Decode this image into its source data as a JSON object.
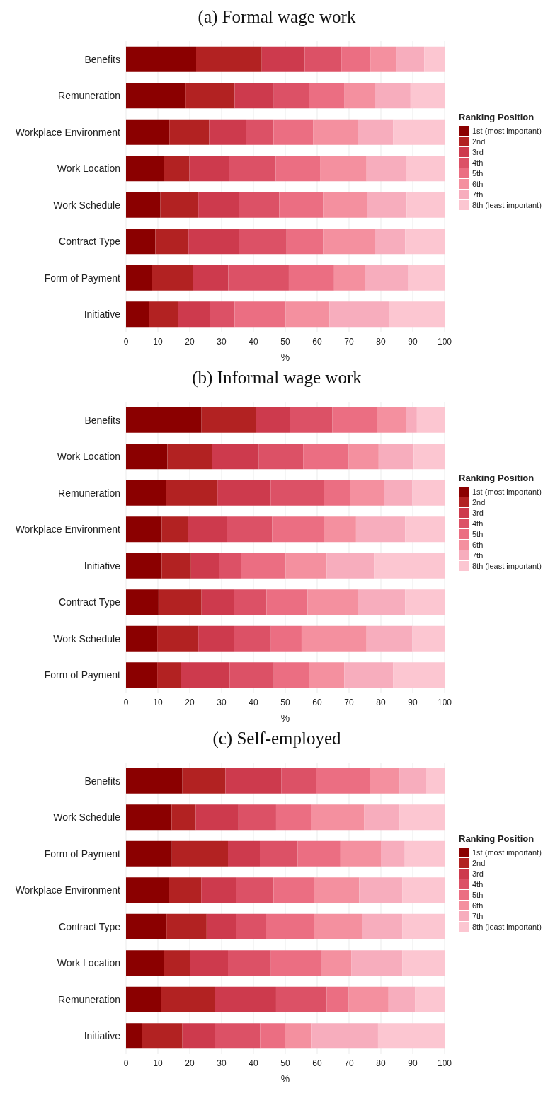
{
  "chart_data": [
    {
      "type": "bar",
      "orientation": "horizontal",
      "stacked": true,
      "title": "(a) Formal wage work",
      "xlabel": "%",
      "legend_title": "Ranking Position",
      "legend": "right",
      "grid": "x",
      "xlim": [
        0,
        100
      ],
      "xticks": [
        0,
        10,
        20,
        30,
        40,
        50,
        60,
        70,
        80,
        90,
        100
      ],
      "categories": [
        "Benefits",
        "Remuneration",
        "Workplace Environment",
        "Work Location",
        "Work Schedule",
        "Contract Type",
        "Form of Payment",
        "Initiative"
      ],
      "series": [
        {
          "name": "1st (most important)",
          "color": "#8b0000",
          "values": [
            22.0,
            18.7,
            13.6,
            11.9,
            10.8,
            9.2,
            8.1,
            7.2
          ]
        },
        {
          "name": "2nd",
          "color": "#b22222",
          "values": [
            20.6,
            15.4,
            12.5,
            8.0,
            11.9,
            10.4,
            12.9,
            9.1
          ]
        },
        {
          "name": "3rd",
          "color": "#cd3a4d",
          "values": [
            13.5,
            12.3,
            11.5,
            12.5,
            12.8,
            15.9,
            11.1,
            10.1
          ]
        },
        {
          "name": "4th",
          "color": "#dc5166",
          "values": [
            11.5,
            11.1,
            8.7,
            14.6,
            12.6,
            14.9,
            19.0,
            7.7
          ]
        },
        {
          "name": "5th",
          "color": "#eb6e82",
          "values": [
            9.1,
            11.1,
            12.5,
            13.9,
            13.8,
            11.5,
            14.2,
            16.0
          ]
        },
        {
          "name": "6th",
          "color": "#f4909f",
          "values": [
            8.2,
            9.5,
            13.9,
            14.6,
            13.8,
            16.2,
            9.7,
            13.8
          ]
        },
        {
          "name": "7th",
          "color": "#f7adbd",
          "values": [
            8.7,
            11.2,
            11.2,
            12.4,
            12.4,
            9.5,
            13.6,
            18.7
          ]
        },
        {
          "name": "8th (least important)",
          "color": "#fcc6d1",
          "values": [
            6.4,
            10.7,
            16.1,
            12.1,
            11.9,
            12.4,
            11.4,
            17.4
          ]
        }
      ]
    },
    {
      "type": "bar",
      "orientation": "horizontal",
      "stacked": true,
      "title": "(b) Informal wage work",
      "xlabel": "%",
      "legend_title": "Ranking Position",
      "legend": "right",
      "grid": "x",
      "xlim": [
        0,
        100
      ],
      "xticks": [
        0,
        10,
        20,
        30,
        40,
        50,
        60,
        70,
        80,
        90,
        100
      ],
      "categories": [
        "Benefits",
        "Work Location",
        "Remuneration",
        "Workplace Environment",
        "Initiative",
        "Contract Type",
        "Work Schedule",
        "Form of Payment"
      ],
      "series": [
        {
          "name": "1st (most important)",
          "color": "#8b0000",
          "values": [
            23.7,
            13.0,
            12.6,
            11.2,
            11.2,
            10.2,
            9.8,
            9.8
          ]
        },
        {
          "name": "2nd",
          "color": "#b22222",
          "values": [
            17.1,
            13.9,
            16.1,
            8.3,
            9.2,
            13.5,
            12.9,
            7.5
          ]
        },
        {
          "name": "3rd",
          "color": "#cd3a4d",
          "values": [
            10.7,
            14.8,
            16.7,
            12.1,
            8.9,
            10.2,
            11.2,
            15.2
          ]
        },
        {
          "name": "4th",
          "color": "#dc5166",
          "values": [
            13.3,
            13.9,
            16.7,
            14.3,
            6.8,
            10.2,
            11.6,
            13.9
          ]
        },
        {
          "name": "5th",
          "color": "#eb6e82",
          "values": [
            14.0,
            14.3,
            8.3,
            16.2,
            14.0,
            12.9,
            9.6,
            11.1
          ]
        },
        {
          "name": "6th",
          "color": "#f4909f",
          "values": [
            9.2,
            9.4,
            10.6,
            10.1,
            12.9,
            15.7,
            20.4,
            11.0
          ]
        },
        {
          "name": "7th",
          "color": "#f7adbd",
          "values": [
            3.3,
            11.0,
            8.9,
            15.4,
            14.9,
            14.9,
            14.4,
            15.4
          ]
        },
        {
          "name": "8th (least important)",
          "color": "#fcc6d1",
          "values": [
            8.7,
            9.7,
            10.1,
            12.4,
            22.1,
            12.4,
            10.1,
            16.1
          ]
        }
      ]
    },
    {
      "type": "bar",
      "orientation": "horizontal",
      "stacked": true,
      "title": "(c) Self-employed",
      "xlabel": "%",
      "legend_title": "Ranking Position",
      "legend": "right",
      "grid": "x",
      "xlim": [
        0,
        100
      ],
      "xticks": [
        0,
        10,
        20,
        30,
        40,
        50,
        60,
        70,
        80,
        90,
        100
      ],
      "categories": [
        "Benefits",
        "Work Schedule",
        "Form of Payment",
        "Workplace Environment",
        "Contract Type",
        "Work Location",
        "Remuneration",
        "Initiative"
      ],
      "series": [
        {
          "name": "1st (most important)",
          "color": "#8b0000",
          "values": [
            17.7,
            14.3,
            14.4,
            13.5,
            12.7,
            11.9,
            11.0,
            5.0
          ]
        },
        {
          "name": "2nd",
          "color": "#b22222",
          "values": [
            13.5,
            7.6,
            17.6,
            10.1,
            12.6,
            8.2,
            16.8,
            12.7
          ]
        },
        {
          "name": "3rd",
          "color": "#cd3a4d",
          "values": [
            17.6,
            13.4,
            10.0,
            10.9,
            9.2,
            11.9,
            19.3,
            10.1
          ]
        },
        {
          "name": "4th",
          "color": "#dc5166",
          "values": [
            10.9,
            11.8,
            11.9,
            11.8,
            9.3,
            13.5,
            15.9,
            14.3
          ]
        },
        {
          "name": "5th",
          "color": "#eb6e82",
          "values": [
            16.9,
            10.9,
            13.4,
            12.6,
            15.1,
            16.0,
            6.9,
            7.7
          ]
        },
        {
          "name": "6th",
          "color": "#f4909f",
          "values": [
            9.2,
            16.8,
            12.7,
            14.3,
            15.1,
            9.2,
            12.5,
            8.3
          ]
        },
        {
          "name": "7th",
          "color": "#f7adbd",
          "values": [
            8.3,
            11.0,
            7.5,
            13.5,
            12.7,
            16.0,
            8.4,
            21.0
          ]
        },
        {
          "name": "8th (least important)",
          "color": "#fcc6d1",
          "values": [
            5.9,
            14.2,
            12.5,
            13.3,
            13.3,
            13.3,
            9.2,
            21.0
          ]
        }
      ]
    }
  ]
}
